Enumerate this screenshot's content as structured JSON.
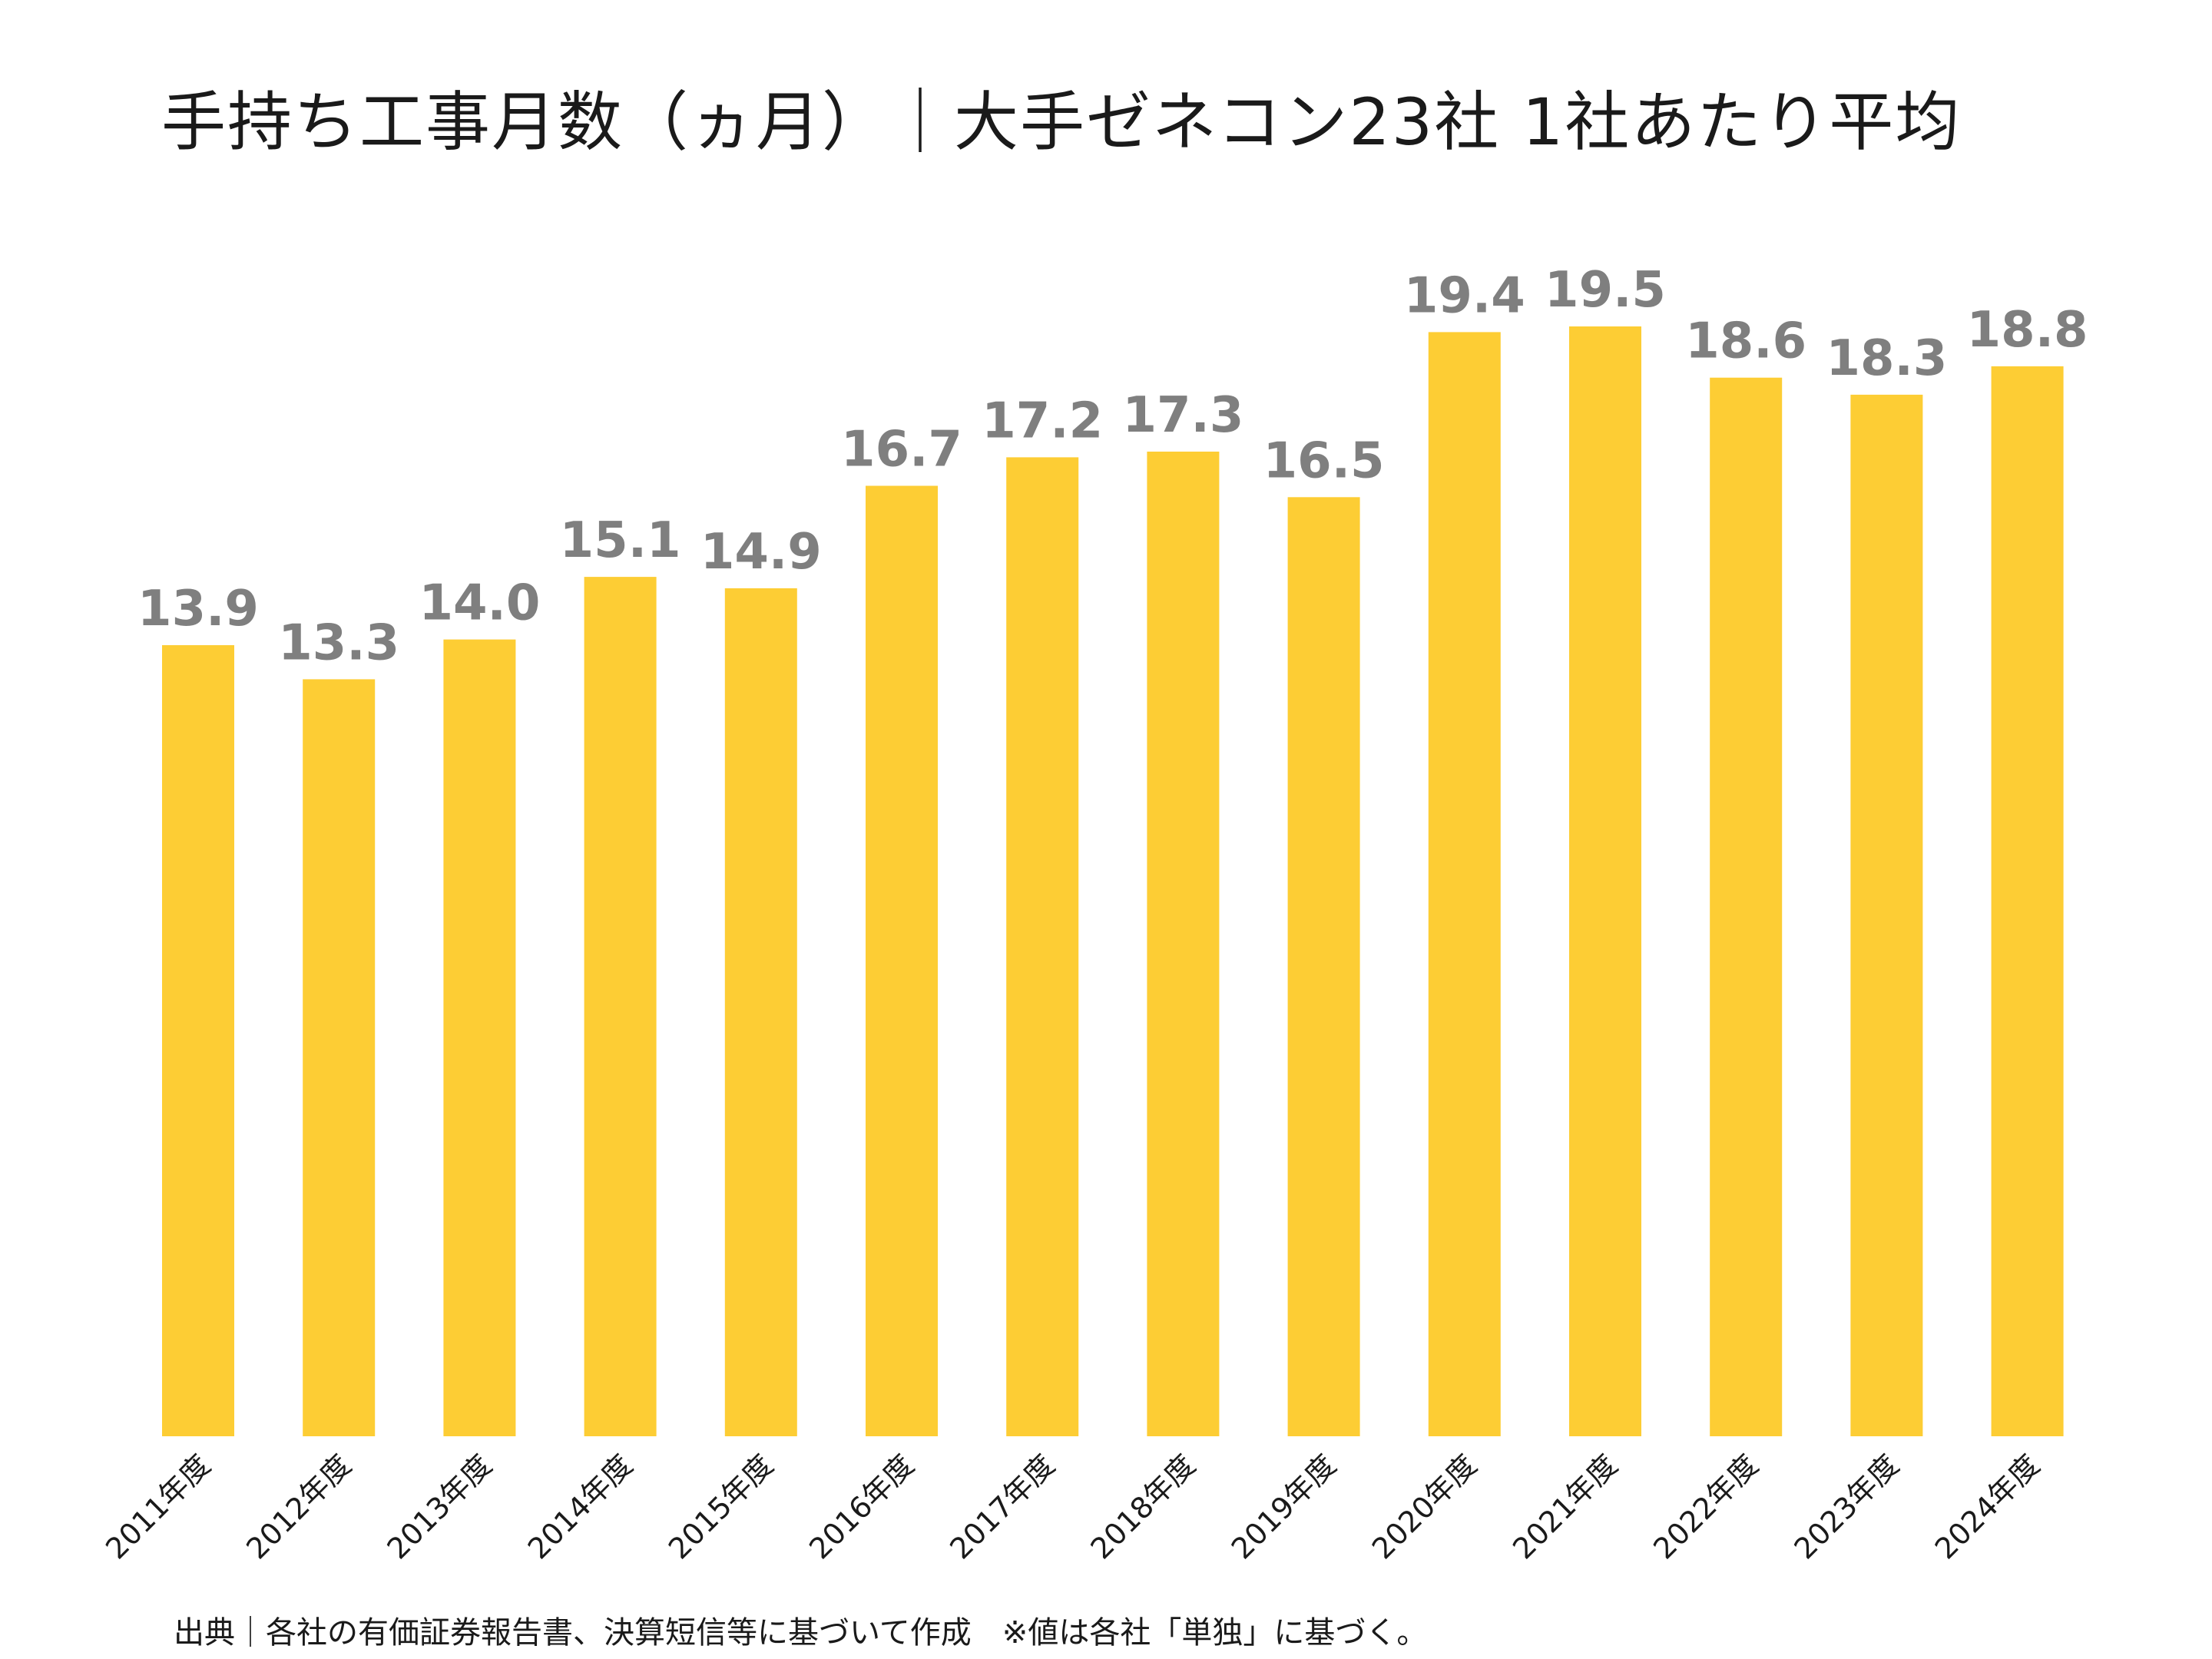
{
  "chart_data": {
    "type": "bar",
    "title": "手持ち工事月数（ヵ月）｜大手ゼネコン23社 1社あたり平均",
    "xlabel": "",
    "ylabel": "",
    "categories": [
      "2011年度",
      "2012年度",
      "2013年度",
      "2014年度",
      "2015年度",
      "2016年度",
      "2017年度",
      "2018年度",
      "2019年度",
      "2020年度",
      "2021年度",
      "2022年度",
      "2023年度",
      "2024年度"
    ],
    "values": [
      13.9,
      13.3,
      14.0,
      15.1,
      14.9,
      16.7,
      17.2,
      17.3,
      16.5,
      19.4,
      19.5,
      18.6,
      18.3,
      18.8
    ],
    "value_labels": [
      "13.9",
      "13.3",
      "14.0",
      "15.1",
      "14.9",
      "16.7",
      "17.2",
      "17.3",
      "16.5",
      "19.4",
      "19.5",
      "18.6",
      "18.3",
      "18.8"
    ],
    "ylim": [
      0,
      19.5
    ],
    "grid": false,
    "legend": "none",
    "bar_color": "#FDCD34",
    "label_color": "#7F7F7F",
    "source_note": "出典｜各社の有価証券報告書、決算短信等に基づいて作成　※値は各社「単独」に基づく。"
  }
}
